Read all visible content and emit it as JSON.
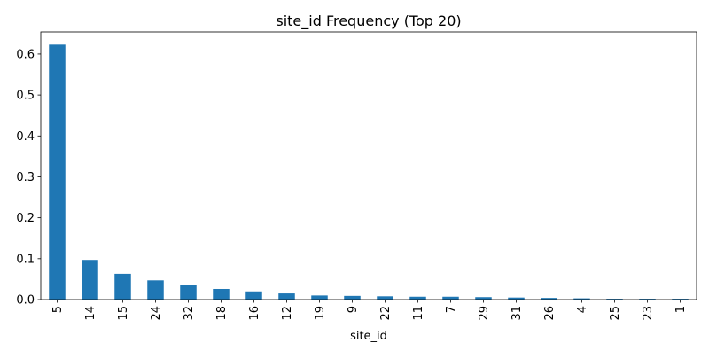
{
  "chart_data": {
    "type": "bar",
    "title": "site_id Frequency (Top 20)",
    "xlabel": "site_id",
    "ylabel": "",
    "categories": [
      "5",
      "14",
      "15",
      "24",
      "32",
      "18",
      "16",
      "12",
      "19",
      "9",
      "22",
      "11",
      "7",
      "29",
      "31",
      "26",
      "4",
      "25",
      "23",
      "1"
    ],
    "values": [
      0.623,
      0.097,
      0.063,
      0.047,
      0.036,
      0.026,
      0.02,
      0.015,
      0.01,
      0.009,
      0.008,
      0.007,
      0.007,
      0.006,
      0.005,
      0.004,
      0.003,
      0.002,
      0.002,
      0.002
    ],
    "ylim": [
      0,
      0.654
    ],
    "yticks": [
      0.0,
      0.1,
      0.2,
      0.3,
      0.4,
      0.5,
      0.6
    ],
    "ytick_labels": [
      "0.0",
      "0.1",
      "0.2",
      "0.3",
      "0.4",
      "0.5",
      "0.6"
    ],
    "bar_color": "#1f77b4",
    "grid": false,
    "legend": "none"
  }
}
